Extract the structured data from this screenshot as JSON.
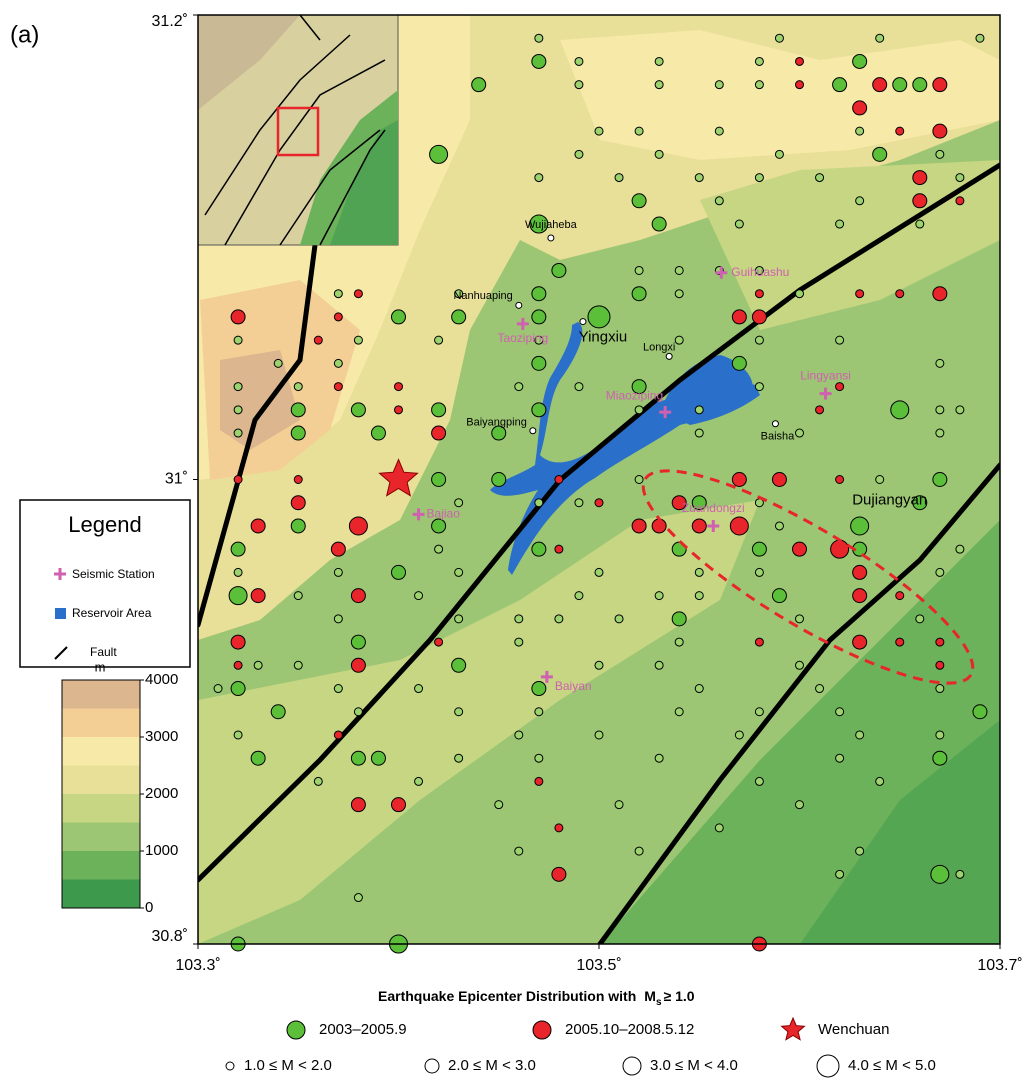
{
  "panel_label": "(a)",
  "map": {
    "xlim": [
      103.3,
      103.7
    ],
    "ylim": [
      30.8,
      31.2
    ],
    "xticks": [
      {
        "value": 103.3,
        "label": "103.3˚"
      },
      {
        "value": 103.5,
        "label": "103.5˚"
      },
      {
        "value": 103.7,
        "label": "103.7˚"
      }
    ],
    "yticks": [
      {
        "value": 30.8,
        "label": "30.8˚"
      },
      {
        "value": 31.0,
        "label": "31˚"
      },
      {
        "value": 31.2,
        "label": "31.2˚"
      }
    ]
  },
  "elevation": {
    "unit": "m",
    "lim": [
      0,
      4000
    ],
    "ticks": [
      0,
      1000,
      2000,
      3000,
      4000
    ],
    "colors": [
      "#3d9a4c",
      "#6cb25a",
      "#9cc673",
      "#c6d683",
      "#e8df98",
      "#f7e9a8",
      "#f4cf95",
      "#dcb68e"
    ]
  },
  "legend": {
    "title": "Legend",
    "items": [
      "Seismic Station",
      "Reservoir Area",
      "Fault"
    ]
  },
  "stations": [
    {
      "name": "Guihuashu",
      "lon": 103.561,
      "lat": 31.089
    },
    {
      "name": "Taoziping",
      "lon": 103.462,
      "lat": 31.067
    },
    {
      "name": "Miaoziping",
      "lon": 103.533,
      "lat": 31.029
    },
    {
      "name": "Lingyansi",
      "lon": 103.613,
      "lat": 31.037
    },
    {
      "name": "Zuandongzi",
      "lon": 103.557,
      "lat": 30.98
    },
    {
      "name": "Bajiao",
      "lon": 103.41,
      "lat": 30.985
    },
    {
      "name": "Baiyan",
      "lon": 103.474,
      "lat": 30.915
    }
  ],
  "towns": [
    {
      "name": "Wujiaheba",
      "lon": 103.476,
      "lat": 31.104
    },
    {
      "name": "Nanhuaping",
      "lon": 103.46,
      "lat": 31.075
    },
    {
      "name": "Yingxiu",
      "lon": 103.492,
      "lat": 31.068
    },
    {
      "name": "Longxi",
      "lon": 103.535,
      "lat": 31.053
    },
    {
      "name": "Baiyangping",
      "lon": 103.467,
      "lat": 31.021
    },
    {
      "name": "Baisha",
      "lon": 103.588,
      "lat": 31.024
    }
  ],
  "city": {
    "name": "Dujiangyan",
    "lon": 103.645,
    "lat": 30.991
  },
  "wenchuan": {
    "lon": 103.4,
    "lat": 31.0
  },
  "caption": {
    "text": "Earthquake Epicenter Distribution with",
    "symbol": "M",
    "subscript": "s",
    "threshold": "≥ 1.0"
  },
  "periods": [
    {
      "name": "2003–2005.9",
      "color": "#5cbf3a"
    },
    {
      "name": "2005.10–2008.5.12",
      "color": "#e8252a"
    }
  ],
  "star_label": "Wenchuan",
  "magnitudes": [
    "1.0 ≤ M < 2.0",
    "2.0 ≤ M < 3.0",
    "3.0 ≤ M < 4.0",
    "4.0 ≤ M < 5.0"
  ],
  "epicenters": [
    [
      103.47,
      31.19,
      0,
      1
    ],
    [
      103.59,
      31.19,
      0,
      1
    ],
    [
      103.64,
      31.19,
      0,
      1
    ],
    [
      103.69,
      31.19,
      0,
      1
    ],
    [
      103.47,
      31.18,
      0,
      2
    ],
    [
      103.49,
      31.18,
      0,
      1
    ],
    [
      103.53,
      31.18,
      0,
      1
    ],
    [
      103.58,
      31.18,
      0,
      1
    ],
    [
      103.6,
      31.18,
      1,
      1
    ],
    [
      103.63,
      31.18,
      0,
      2
    ],
    [
      103.44,
      31.17,
      0,
      2
    ],
    [
      103.49,
      31.17,
      0,
      1
    ],
    [
      103.53,
      31.17,
      0,
      1
    ],
    [
      103.56,
      31.17,
      0,
      1
    ],
    [
      103.58,
      31.17,
      0,
      1
    ],
    [
      103.6,
      31.17,
      1,
      1
    ],
    [
      103.62,
      31.17,
      0,
      2
    ],
    [
      103.64,
      31.17,
      1,
      2
    ],
    [
      103.65,
      31.17,
      0,
      2
    ],
    [
      103.66,
      31.17,
      0,
      2
    ],
    [
      103.67,
      31.17,
      1,
      2
    ],
    [
      103.63,
      31.16,
      1,
      2
    ],
    [
      103.5,
      31.15,
      0,
      1
    ],
    [
      103.52,
      31.15,
      0,
      1
    ],
    [
      103.56,
      31.15,
      0,
      1
    ],
    [
      103.63,
      31.15,
      0,
      1
    ],
    [
      103.65,
      31.15,
      1,
      1
    ],
    [
      103.67,
      31.15,
      1,
      2
    ],
    [
      103.42,
      31.14,
      0,
      3
    ],
    [
      103.49,
      31.14,
      0,
      1
    ],
    [
      103.53,
      31.14,
      0,
      1
    ],
    [
      103.59,
      31.14,
      0,
      1
    ],
    [
      103.64,
      31.14,
      0,
      2
    ],
    [
      103.67,
      31.14,
      0,
      1
    ],
    [
      103.47,
      31.13,
      0,
      1
    ],
    [
      103.51,
      31.13,
      0,
      1
    ],
    [
      103.55,
      31.13,
      0,
      1
    ],
    [
      103.58,
      31.13,
      0,
      1
    ],
    [
      103.61,
      31.13,
      0,
      1
    ],
    [
      103.66,
      31.13,
      1,
      2
    ],
    [
      103.68,
      31.13,
      0,
      1
    ],
    [
      103.38,
      31.12,
      0,
      1
    ],
    [
      103.52,
      31.12,
      0,
      2
    ],
    [
      103.56,
      31.12,
      0,
      1
    ],
    [
      103.63,
      31.12,
      0,
      1
    ],
    [
      103.66,
      31.12,
      1,
      2
    ],
    [
      103.68,
      31.12,
      1,
      1
    ],
    [
      103.47,
      31.11,
      0,
      3
    ],
    [
      103.53,
      31.11,
      0,
      2
    ],
    [
      103.57,
      31.11,
      0,
      1
    ],
    [
      103.62,
      31.11,
      0,
      1
    ],
    [
      103.66,
      31.11,
      0,
      1
    ],
    [
      103.48,
      31.09,
      0,
      2
    ],
    [
      103.52,
      31.09,
      0,
      1
    ],
    [
      103.54,
      31.09,
      0,
      1
    ],
    [
      103.56,
      31.09,
      0,
      1
    ],
    [
      103.58,
      31.09,
      0,
      1
    ],
    [
      103.37,
      31.08,
      0,
      1
    ],
    [
      103.38,
      31.08,
      1,
      1
    ],
    [
      103.43,
      31.08,
      0,
      1
    ],
    [
      103.47,
      31.08,
      0,
      2
    ],
    [
      103.52,
      31.08,
      0,
      2
    ],
    [
      103.54,
      31.08,
      0,
      1
    ],
    [
      103.58,
      31.08,
      1,
      1
    ],
    [
      103.6,
      31.08,
      0,
      1
    ],
    [
      103.63,
      31.08,
      1,
      1
    ],
    [
      103.65,
      31.08,
      1,
      1
    ],
    [
      103.67,
      31.08,
      1,
      2
    ],
    [
      103.32,
      31.07,
      1,
      2
    ],
    [
      103.37,
      31.07,
      1,
      1
    ],
    [
      103.4,
      31.07,
      0,
      2
    ],
    [
      103.43,
      31.07,
      0,
      2
    ],
    [
      103.47,
      31.07,
      0,
      2
    ],
    [
      103.5,
      31.07,
      0,
      4
    ],
    [
      103.57,
      31.07,
      1,
      2
    ],
    [
      103.58,
      31.07,
      1,
      2
    ],
    [
      103.32,
      31.06,
      0,
      1
    ],
    [
      103.36,
      31.06,
      1,
      1
    ],
    [
      103.38,
      31.06,
      0,
      1
    ],
    [
      103.42,
      31.06,
      0,
      1
    ],
    [
      103.47,
      31.06,
      0,
      1
    ],
    [
      103.54,
      31.06,
      0,
      1
    ],
    [
      103.58,
      31.06,
      0,
      1
    ],
    [
      103.62,
      31.06,
      0,
      1
    ],
    [
      103.34,
      31.05,
      0,
      1
    ],
    [
      103.37,
      31.05,
      0,
      1
    ],
    [
      103.47,
      31.05,
      0,
      2
    ],
    [
      103.57,
      31.05,
      0,
      2
    ],
    [
      103.67,
      31.05,
      0,
      1
    ],
    [
      103.32,
      31.04,
      0,
      1
    ],
    [
      103.35,
      31.04,
      0,
      1
    ],
    [
      103.37,
      31.04,
      1,
      1
    ],
    [
      103.4,
      31.04,
      1,
      1
    ],
    [
      103.46,
      31.04,
      0,
      1
    ],
    [
      103.49,
      31.04,
      0,
      1
    ],
    [
      103.52,
      31.04,
      0,
      2
    ],
    [
      103.58,
      31.04,
      0,
      1
    ],
    [
      103.62,
      31.04,
      1,
      1
    ],
    [
      103.32,
      31.03,
      0,
      1
    ],
    [
      103.35,
      31.03,
      0,
      2
    ],
    [
      103.38,
      31.03,
      0,
      2
    ],
    [
      103.4,
      31.03,
      1,
      1
    ],
    [
      103.42,
      31.03,
      0,
      2
    ],
    [
      103.47,
      31.03,
      0,
      2
    ],
    [
      103.52,
      31.03,
      0,
      1
    ],
    [
      103.55,
      31.03,
      0,
      1
    ],
    [
      103.61,
      31.03,
      1,
      1
    ],
    [
      103.65,
      31.03,
      0,
      3
    ],
    [
      103.67,
      31.03,
      0,
      1
    ],
    [
      103.68,
      31.03,
      0,
      1
    ],
    [
      103.32,
      31.02,
      0,
      1
    ],
    [
      103.35,
      31.02,
      0,
      2
    ],
    [
      103.39,
      31.02,
      0,
      2
    ],
    [
      103.42,
      31.02,
      1,
      2
    ],
    [
      103.45,
      31.02,
      0,
      2
    ],
    [
      103.55,
      31.02,
      0,
      1
    ],
    [
      103.6,
      31.02,
      0,
      1
    ],
    [
      103.67,
      31.02,
      0,
      1
    ],
    [
      103.32,
      31.0,
      1,
      1
    ],
    [
      103.35,
      31.0,
      1,
      1
    ],
    [
      103.42,
      31.0,
      0,
      2
    ],
    [
      103.45,
      31.0,
      0,
      2
    ],
    [
      103.48,
      31.0,
      1,
      1
    ],
    [
      103.52,
      31.0,
      0,
      1
    ],
    [
      103.57,
      31.0,
      1,
      2
    ],
    [
      103.59,
      31.0,
      1,
      2
    ],
    [
      103.62,
      31.0,
      1,
      1
    ],
    [
      103.64,
      31.0,
      0,
      1
    ],
    [
      103.67,
      31.0,
      0,
      2
    ],
    [
      103.35,
      30.99,
      1,
      2
    ],
    [
      103.43,
      30.99,
      0,
      1
    ],
    [
      103.47,
      30.99,
      0,
      1
    ],
    [
      103.49,
      30.99,
      0,
      1
    ],
    [
      103.5,
      30.99,
      1,
      1
    ],
    [
      103.54,
      30.99,
      1,
      2
    ],
    [
      103.55,
      30.99,
      0,
      2
    ],
    [
      103.58,
      30.99,
      0,
      1
    ],
    [
      103.66,
      30.99,
      0,
      2
    ],
    [
      103.33,
      30.98,
      1,
      2
    ],
    [
      103.35,
      30.98,
      0,
      2
    ],
    [
      103.38,
      30.98,
      1,
      3
    ],
    [
      103.42,
      30.98,
      0,
      2
    ],
    [
      103.52,
      30.98,
      1,
      2
    ],
    [
      103.53,
      30.98,
      1,
      2
    ],
    [
      103.55,
      30.98,
      1,
      2
    ],
    [
      103.57,
      30.98,
      1,
      3
    ],
    [
      103.59,
      30.98,
      0,
      1
    ],
    [
      103.63,
      30.98,
      0,
      3
    ],
    [
      103.32,
      30.97,
      0,
      2
    ],
    [
      103.37,
      30.97,
      1,
      2
    ],
    [
      103.42,
      30.97,
      0,
      1
    ],
    [
      103.47,
      30.97,
      0,
      2
    ],
    [
      103.48,
      30.97,
      1,
      1
    ],
    [
      103.54,
      30.97,
      0,
      2
    ],
    [
      103.58,
      30.97,
      0,
      2
    ],
    [
      103.6,
      30.97,
      1,
      2
    ],
    [
      103.62,
      30.97,
      1,
      3
    ],
    [
      103.63,
      30.97,
      0,
      2
    ],
    [
      103.68,
      30.97,
      0,
      1
    ],
    [
      103.32,
      30.96,
      0,
      1
    ],
    [
      103.37,
      30.96,
      0,
      1
    ],
    [
      103.4,
      30.96,
      0,
      2
    ],
    [
      103.43,
      30.96,
      0,
      1
    ],
    [
      103.5,
      30.96,
      0,
      1
    ],
    [
      103.55,
      30.96,
      0,
      1
    ],
    [
      103.58,
      30.96,
      0,
      1
    ],
    [
      103.63,
      30.96,
      1,
      2
    ],
    [
      103.67,
      30.96,
      0,
      1
    ],
    [
      103.32,
      30.95,
      0,
      3
    ],
    [
      103.33,
      30.95,
      1,
      2
    ],
    [
      103.35,
      30.95,
      0,
      1
    ],
    [
      103.38,
      30.95,
      1,
      2
    ],
    [
      103.41,
      30.95,
      0,
      1
    ],
    [
      103.49,
      30.95,
      0,
      1
    ],
    [
      103.53,
      30.95,
      0,
      1
    ],
    [
      103.55,
      30.95,
      0,
      1
    ],
    [
      103.59,
      30.95,
      0,
      2
    ],
    [
      103.63,
      30.95,
      1,
      2
    ],
    [
      103.65,
      30.95,
      1,
      1
    ],
    [
      103.37,
      30.94,
      0,
      1
    ],
    [
      103.43,
      30.94,
      0,
      1
    ],
    [
      103.46,
      30.94,
      0,
      1
    ],
    [
      103.48,
      30.94,
      0,
      1
    ],
    [
      103.51,
      30.94,
      0,
      1
    ],
    [
      103.54,
      30.94,
      0,
      2
    ],
    [
      103.6,
      30.94,
      0,
      1
    ],
    [
      103.66,
      30.94,
      0,
      1
    ],
    [
      103.32,
      30.93,
      1,
      2
    ],
    [
      103.38,
      30.93,
      0,
      2
    ],
    [
      103.42,
      30.93,
      1,
      1
    ],
    [
      103.46,
      30.93,
      0,
      1
    ],
    [
      103.54,
      30.93,
      0,
      1
    ],
    [
      103.58,
      30.93,
      1,
      1
    ],
    [
      103.63,
      30.93,
      1,
      2
    ],
    [
      103.65,
      30.93,
      1,
      1
    ],
    [
      103.67,
      30.93,
      1,
      1
    ],
    [
      103.32,
      30.92,
      1,
      1
    ],
    [
      103.33,
      30.92,
      0,
      1
    ],
    [
      103.35,
      30.92,
      0,
      1
    ],
    [
      103.38,
      30.92,
      1,
      2
    ],
    [
      103.43,
      30.92,
      0,
      2
    ],
    [
      103.5,
      30.92,
      0,
      1
    ],
    [
      103.53,
      30.92,
      0,
      1
    ],
    [
      103.6,
      30.92,
      0,
      1
    ],
    [
      103.67,
      30.92,
      1,
      1
    ],
    [
      103.31,
      30.91,
      0,
      1
    ],
    [
      103.32,
      30.91,
      0,
      2
    ],
    [
      103.37,
      30.91,
      0,
      1
    ],
    [
      103.41,
      30.91,
      0,
      1
    ],
    [
      103.47,
      30.91,
      0,
      2
    ],
    [
      103.55,
      30.91,
      0,
      1
    ],
    [
      103.61,
      30.91,
      0,
      1
    ],
    [
      103.67,
      30.91,
      0,
      1
    ],
    [
      103.34,
      30.9,
      0,
      2
    ],
    [
      103.38,
      30.9,
      0,
      1
    ],
    [
      103.43,
      30.9,
      0,
      1
    ],
    [
      103.47,
      30.9,
      0,
      1
    ],
    [
      103.54,
      30.9,
      0,
      1
    ],
    [
      103.58,
      30.9,
      0,
      1
    ],
    [
      103.62,
      30.9,
      0,
      1
    ],
    [
      103.69,
      30.9,
      0,
      2
    ],
    [
      103.32,
      30.89,
      0,
      1
    ],
    [
      103.37,
      30.89,
      1,
      1
    ],
    [
      103.46,
      30.89,
      0,
      1
    ],
    [
      103.5,
      30.89,
      0,
      1
    ],
    [
      103.57,
      30.89,
      0,
      1
    ],
    [
      103.63,
      30.89,
      0,
      1
    ],
    [
      103.67,
      30.89,
      0,
      1
    ],
    [
      103.33,
      30.88,
      0,
      2
    ],
    [
      103.38,
      30.88,
      0,
      2
    ],
    [
      103.39,
      30.88,
      0,
      2
    ],
    [
      103.43,
      30.88,
      0,
      1
    ],
    [
      103.47,
      30.88,
      0,
      1
    ],
    [
      103.53,
      30.88,
      0,
      1
    ],
    [
      103.62,
      30.88,
      0,
      1
    ],
    [
      103.67,
      30.88,
      0,
      2
    ],
    [
      103.36,
      30.87,
      0,
      1
    ],
    [
      103.41,
      30.87,
      0,
      1
    ],
    [
      103.47,
      30.87,
      1,
      1
    ],
    [
      103.58,
      30.87,
      0,
      1
    ],
    [
      103.64,
      30.87,
      0,
      1
    ],
    [
      103.38,
      30.86,
      1,
      2
    ],
    [
      103.4,
      30.86,
      1,
      2
    ],
    [
      103.45,
      30.86,
      0,
      1
    ],
    [
      103.51,
      30.86,
      0,
      1
    ],
    [
      103.6,
      30.86,
      0,
      1
    ],
    [
      103.48,
      30.85,
      1,
      1
    ],
    [
      103.56,
      30.85,
      0,
      1
    ],
    [
      103.46,
      30.84,
      0,
      1
    ],
    [
      103.52,
      30.84,
      0,
      1
    ],
    [
      103.63,
      30.84,
      0,
      1
    ],
    [
      103.48,
      30.83,
      1,
      2
    ],
    [
      103.62,
      30.83,
      0,
      1
    ],
    [
      103.67,
      30.83,
      0,
      3
    ],
    [
      103.68,
      30.83,
      0,
      1
    ],
    [
      103.38,
      30.82,
      0,
      1
    ],
    [
      103.32,
      30.8,
      0,
      2
    ],
    [
      103.4,
      30.8,
      0,
      3
    ],
    [
      103.58,
      30.8,
      1,
      2
    ]
  ]
}
